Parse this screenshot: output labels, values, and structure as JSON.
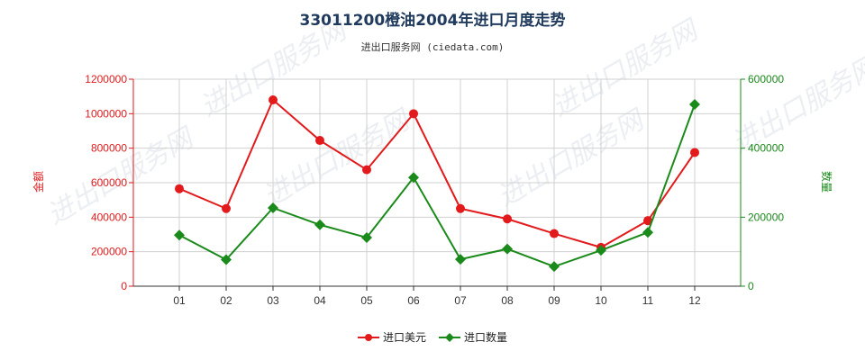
{
  "chart_data": {
    "type": "line",
    "title": "33011200橙油2004年进口月度走势",
    "subtitle": "进出口服务网 (ciedata.com)",
    "categories": [
      "01",
      "02",
      "03",
      "04",
      "05",
      "06",
      "07",
      "08",
      "09",
      "10",
      "11",
      "12"
    ],
    "y_left": {
      "label": "金额",
      "ylim": [
        0,
        1200000
      ],
      "ticks": [
        0,
        200000,
        400000,
        600000,
        800000,
        1000000,
        1200000
      ],
      "tick_labels": [
        "0",
        "200000",
        "400000",
        "600000",
        "800000",
        "1000000",
        "1200000"
      ],
      "color": "#e31a1c"
    },
    "y_right": {
      "label": "数量",
      "ylim": [
        0,
        600000
      ],
      "ticks": [
        0,
        200000,
        400000,
        600000
      ],
      "tick_labels": [
        "0",
        "200000",
        "400000",
        "600000"
      ],
      "color": "#1a8a1a"
    },
    "series": [
      {
        "name": "进口美元",
        "axis": "left",
        "color": "#e31a1c",
        "marker": "circle",
        "values": [
          565000,
          450000,
          1080000,
          845000,
          675000,
          1000000,
          450000,
          390000,
          305000,
          225000,
          380000,
          775000
        ]
      },
      {
        "name": "进口数量",
        "axis": "right",
        "color": "#1a8a1a",
        "marker": "diamond",
        "values": [
          148000,
          77000,
          227000,
          178000,
          141000,
          315000,
          78000,
          108000,
          57000,
          104000,
          156000,
          527000
        ]
      }
    ],
    "grid": true,
    "legend_position": "bottom-center",
    "watermark": "进出口服务网"
  }
}
